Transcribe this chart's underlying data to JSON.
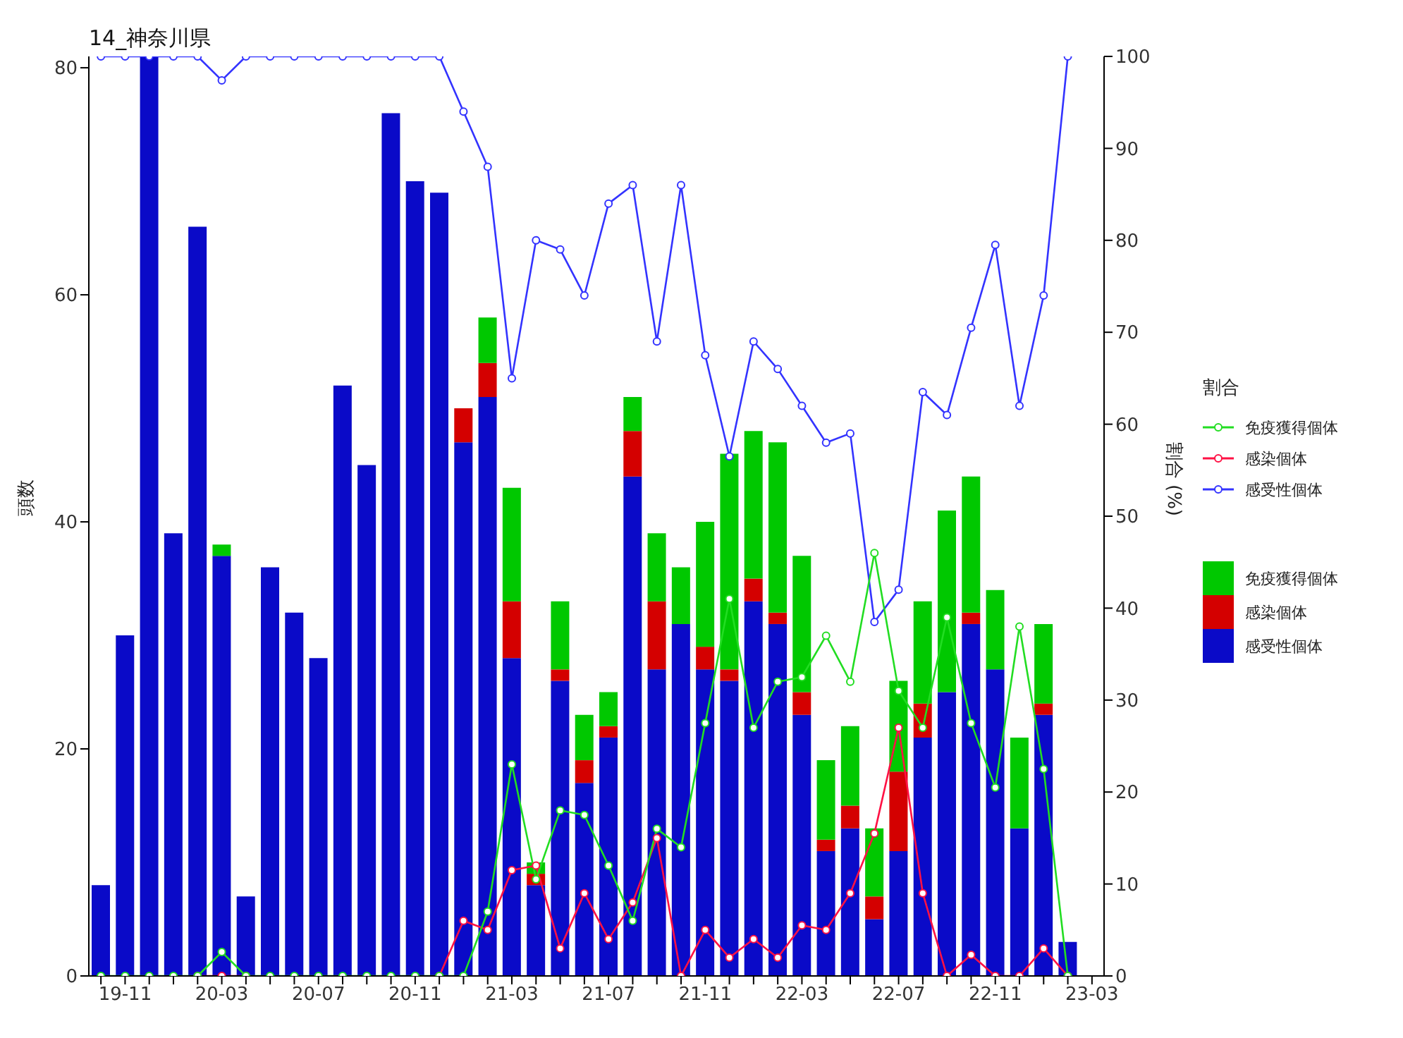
{
  "chart_data": {
    "type": "bar",
    "title": "14_神奈川県",
    "ylabel": "頭数",
    "y2label": "割合 (%)",
    "legend_title": "割合",
    "stacked": true,
    "legend": "right",
    "grid": false,
    "marker": "circle",
    "categories": [
      null,
      "19-11",
      null,
      null,
      null,
      "20-03",
      null,
      null,
      null,
      "20-07",
      null,
      null,
      null,
      "20-11",
      null,
      null,
      null,
      "21-03",
      null,
      null,
      null,
      "21-07",
      null,
      null,
      null,
      "21-11",
      null,
      null,
      null,
      "22-03",
      null,
      null,
      null,
      "22-07",
      null,
      null,
      null,
      "22-11",
      null,
      null,
      null,
      "23-03"
    ],
    "ylim": [
      0,
      81
    ],
    "yticks": [
      0,
      20,
      40,
      60,
      80
    ],
    "y2lim": [
      0,
      100
    ],
    "y2ticks": [
      0,
      10,
      20,
      30,
      40,
      50,
      60,
      70,
      80,
      90,
      100
    ],
    "series": [
      {
        "name": "感受性個体",
        "color": "#0a0ac8",
        "values": [
          8,
          30,
          81,
          39,
          66,
          37,
          7,
          36,
          32,
          28,
          52,
          45,
          76,
          70,
          69,
          47,
          51,
          28,
          8,
          26,
          17,
          21,
          44,
          27,
          31,
          27,
          26,
          33,
          31,
          23,
          11,
          13,
          5,
          11,
          21,
          25,
          31,
          27,
          13,
          23,
          3,
          null
        ]
      },
      {
        "name": "感染個体",
        "color": "#d40000",
        "values": [
          0,
          0,
          0,
          0,
          0,
          0,
          0,
          0,
          0,
          0,
          0,
          0,
          0,
          0,
          0,
          3,
          3,
          5,
          1,
          1,
          2,
          1,
          4,
          6,
          0,
          2,
          1,
          2,
          1,
          2,
          1,
          2,
          2,
          7,
          3,
          0,
          1,
          0,
          0,
          1,
          0,
          null
        ]
      },
      {
        "name": "免疫獲得個体",
        "color": "#00c800",
        "values": [
          0,
          0,
          0,
          0,
          0,
          1,
          0,
          0,
          0,
          0,
          0,
          0,
          0,
          0,
          0,
          0,
          4,
          10,
          1,
          6,
          4,
          3,
          3,
          6,
          5,
          11,
          19,
          13,
          15,
          12,
          7,
          7,
          6,
          8,
          9,
          16,
          12,
          7,
          8,
          7,
          0,
          null
        ]
      },
      {
        "name": "免疫獲得個体",
        "type": "line",
        "axis": "y2",
        "color": "#22dd22",
        "values": [
          0,
          0,
          0,
          0,
          0,
          2.6,
          0,
          0,
          0,
          0,
          0,
          0,
          0,
          0,
          0,
          0,
          7,
          23,
          10.5,
          18,
          17.5,
          12,
          6,
          16,
          14,
          27.5,
          41,
          27,
          32,
          32.5,
          37,
          32,
          46,
          31,
          27,
          39,
          27.5,
          20.5,
          38,
          22.5,
          0,
          null
        ]
      },
      {
        "name": "感染個体",
        "type": "line",
        "axis": "y2",
        "color": "#ff1144",
        "values": [
          null,
          null,
          null,
          null,
          0,
          0,
          0,
          null,
          null,
          null,
          null,
          null,
          null,
          null,
          0,
          6,
          5,
          11.5,
          12,
          3,
          9,
          4,
          8,
          15,
          0,
          5,
          2,
          4,
          2,
          5.5,
          5,
          9,
          15.5,
          27,
          9,
          0,
          2.3,
          0,
          0,
          3,
          0,
          null
        ]
      },
      {
        "name": "感受性個体",
        "type": "line",
        "axis": "y2",
        "color": "#3333ff",
        "values": [
          100,
          100,
          100,
          100,
          100,
          97.4,
          100,
          100,
          100,
          100,
          100,
          100,
          100,
          100,
          100,
          94,
          88,
          65,
          80,
          79,
          74,
          84,
          86,
          69,
          86,
          67.5,
          56.5,
          69,
          66,
          62,
          58,
          59,
          38.5,
          42,
          63.5,
          61,
          70.5,
          79.5,
          62,
          74,
          100,
          null
        ]
      }
    ]
  }
}
